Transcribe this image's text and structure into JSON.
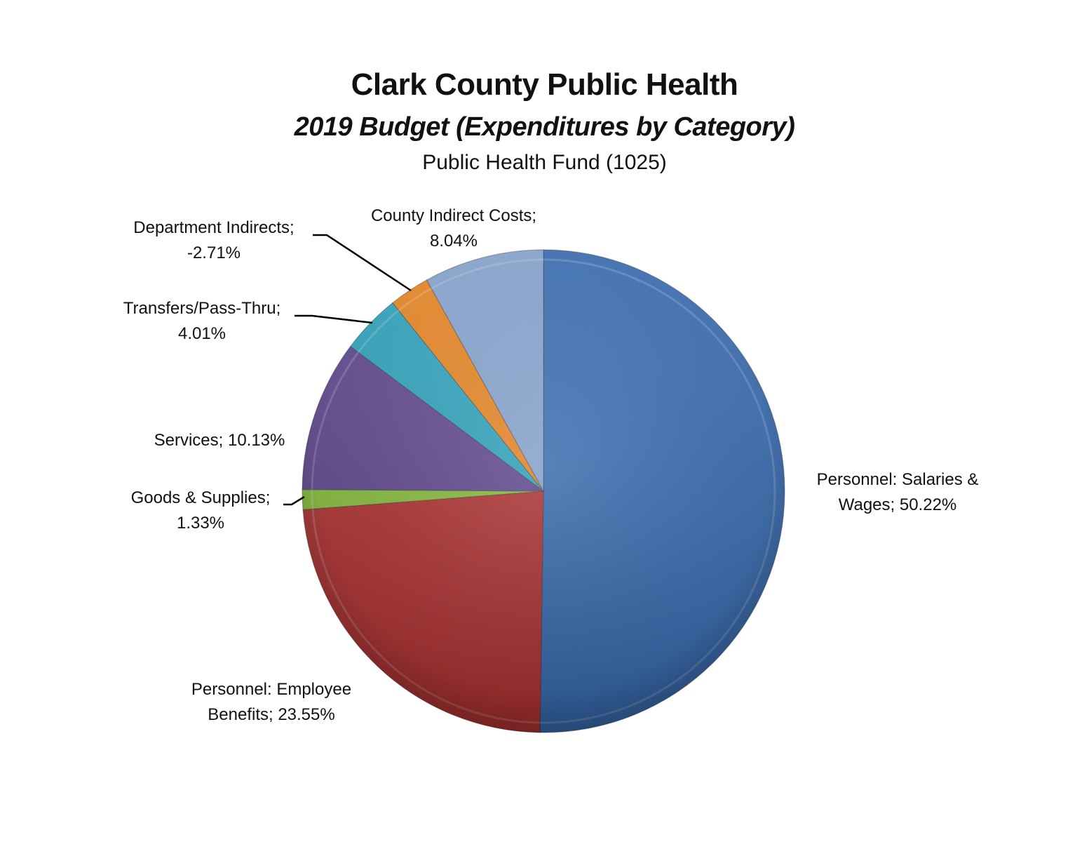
{
  "chart_data": {
    "type": "pie",
    "title": "Clark County Public Health",
    "subtitle": "2019 Budget (Expenditures by Category)",
    "subtitle2": "Public Health Fund (1025)",
    "start_angle": "12 o'clock, clockwise",
    "legend": "none (data labels with leader lines)",
    "slices": [
      {
        "label": "Personnel: Salaries & Wages",
        "value": 50.22,
        "display": "50.22%",
        "color": "#3a70b8"
      },
      {
        "label": "Personnel: Employee Benefits",
        "value": 23.55,
        "display": "23.55%",
        "color": "#b83434"
      },
      {
        "label": "Goods & Supplies",
        "value": 1.33,
        "display": "1.33%",
        "color": "#8dc63f"
      },
      {
        "label": "Services",
        "value": 10.13,
        "display": "10.13%",
        "color": "#634a95"
      },
      {
        "label": "Transfers/Pass-Thru",
        "value": 4.01,
        "display": "4.01%",
        "color": "#2fa9c4"
      },
      {
        "label": "Department Indirects",
        "value": -2.71,
        "display": "-2.71%",
        "color": "#f08a24"
      },
      {
        "label": "County Indirect Costs",
        "value": 8.04,
        "display": "8.04%",
        "color": "#8aa9d6"
      }
    ]
  },
  "labels": {
    "salaries_line1": "Personnel: Salaries &",
    "salaries_line2": "Wages; 50.22%",
    "benefits_line1": "Personnel: Employee",
    "benefits_line2": "Benefits; 23.55%",
    "goods_line1": "Goods & Supplies;",
    "goods_line2": "1.33%",
    "services_line1": "Services; 10.13%",
    "transfers_line1": "Transfers/Pass-Thru;",
    "transfers_line2": "4.01%",
    "dept_line1": "Department Indirects;",
    "dept_line2": "-2.71%",
    "county_line1": "County Indirect Costs;",
    "county_line2": "8.04%"
  }
}
